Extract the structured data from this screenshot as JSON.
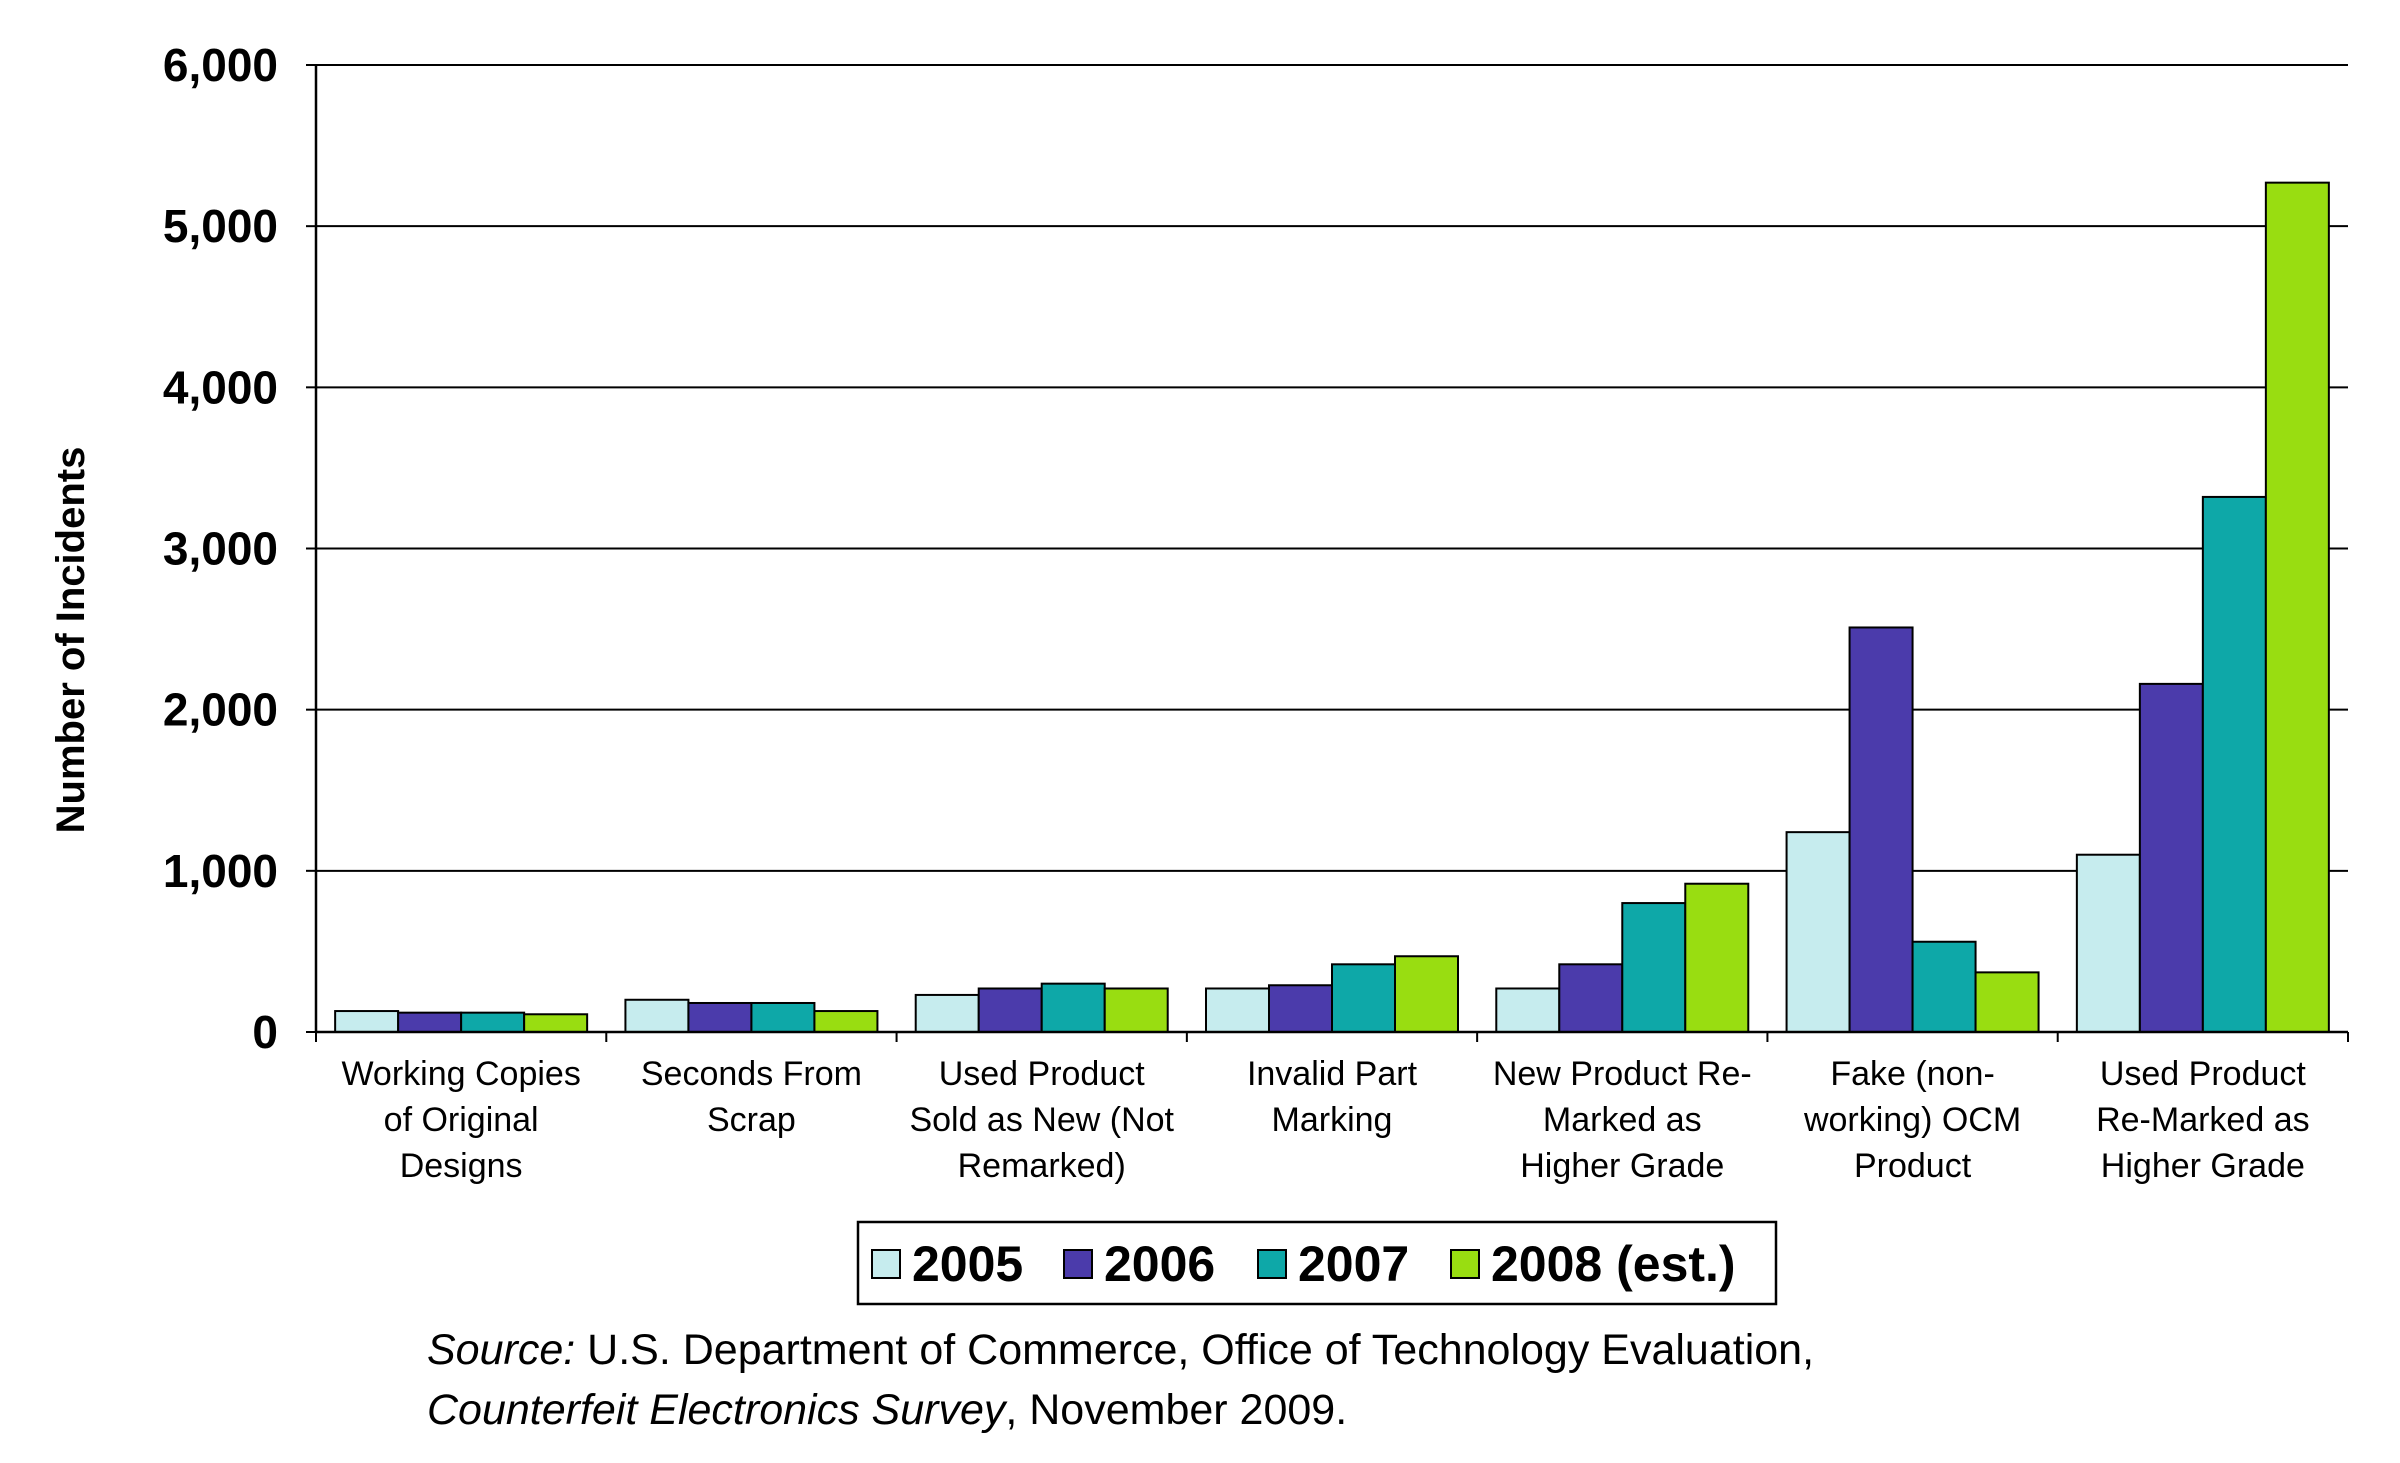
{
  "chart_data": {
    "type": "bar",
    "title": "",
    "xlabel": "",
    "ylabel": "Number of Incidents",
    "ylim": [
      0,
      6000
    ],
    "yticks": [
      0,
      1000,
      2000,
      3000,
      4000,
      5000,
      6000
    ],
    "ytick_labels": [
      "0",
      "1,000",
      "2,000",
      "3,000",
      "4,000",
      "5,000",
      "6,000"
    ],
    "grid": true,
    "legend_position": "bottom-center",
    "categories": [
      [
        "Working Copies",
        "of Original",
        "Designs"
      ],
      [
        "Seconds From",
        "Scrap"
      ],
      [
        "Used Product",
        "Sold as New (Not",
        "Remarked)"
      ],
      [
        "Invalid Part",
        "Marking"
      ],
      [
        "New Product Re-",
        "Marked as",
        "Higher Grade"
      ],
      [
        "Fake (non-",
        "working) OCM",
        "Product"
      ],
      [
        "Used Product",
        "Re-Marked as",
        "Higher Grade"
      ]
    ],
    "series": [
      {
        "name": "2005",
        "color": "#c6ecee",
        "values": [
          130,
          200,
          230,
          270,
          270,
          1240,
          1100
        ]
      },
      {
        "name": "2006",
        "color": "#4b3bab",
        "values": [
          120,
          180,
          270,
          290,
          420,
          2510,
          2160
        ]
      },
      {
        "name": "2007",
        "color": "#0ea8a8",
        "values": [
          120,
          180,
          300,
          420,
          800,
          560,
          3320
        ]
      },
      {
        "name": "2008 (est.)",
        "color": "#99dd11",
        "values": [
          110,
          130,
          270,
          470,
          920,
          370,
          5270
        ]
      }
    ]
  },
  "source": {
    "label": "Source:",
    "line1": " U.S. Department of Commerce, Office of Technology Evaluation,",
    "survey": "Counterfeit Electronics Survey",
    "line2": ", November 2009."
  }
}
